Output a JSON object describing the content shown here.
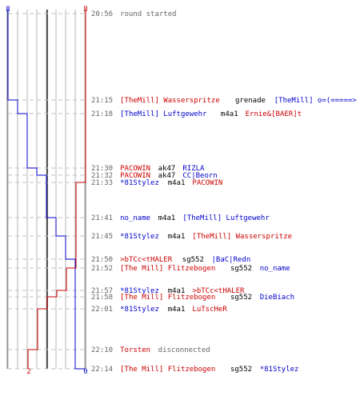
{
  "colors": {
    "blue": "#0000cc",
    "red": "#cc0000",
    "grey": "#666666",
    "black": "#000000",
    "grid": "#b4b4b4",
    "dash": "#c0c0c0",
    "axis": "#777777"
  },
  "chart_data": {
    "type": "line",
    "y_axis": "time",
    "series": [
      {
        "name": "",
        "color": "blue",
        "start_value": 8,
        "end_value": 0,
        "steps": [
          {
            "time": "21:15",
            "value": 7
          },
          {
            "time": "21:18",
            "value": 6
          },
          {
            "time": "21:30",
            "value": 5
          },
          {
            "time": "21:32",
            "value": 4
          },
          {
            "time": "21:41",
            "value": 3
          },
          {
            "time": "21:45",
            "value": 2
          },
          {
            "time": "21:50",
            "value": 1
          },
          {
            "time": "22:14",
            "value": 0
          }
        ]
      },
      {
        "name": "",
        "color": "red",
        "start_value": 8,
        "end_value": 2,
        "steps": [
          {
            "time": "21:33",
            "value": 7
          },
          {
            "time": "21:52",
            "value": 6
          },
          {
            "time": "21:57",
            "value": 5
          },
          {
            "time": "21:58",
            "value": 4
          },
          {
            "time": "22:01",
            "value": 3
          },
          {
            "time": "22:10",
            "value": 2
          }
        ]
      }
    ],
    "top_labels": [
      {
        "text": "8",
        "color": "blue",
        "value": 8
      },
      {
        "text": "8",
        "color": "red",
        "value": 8
      }
    ],
    "bottom_labels": [
      {
        "text": "0",
        "color": "blue",
        "value": 0
      },
      {
        "text": "2",
        "color": "red",
        "value": 2
      }
    ]
  },
  "events": [
    {
      "time": "20:56",
      "parts": [
        {
          "text": "round started",
          "color": "grey"
        }
      ]
    },
    {
      "time": "21:15",
      "parts": [
        {
          "text": "[TheMill] Wasserspritze",
          "color": "red"
        },
        {
          "text": " grenade ",
          "color": "black"
        },
        {
          "text": "[TheMill] o=(=====>",
          "color": "blue"
        }
      ]
    },
    {
      "time": "21:18",
      "parts": [
        {
          "text": "[TheMill] Luftgewehr",
          "color": "blue"
        },
        {
          "text": " m4a1 ",
          "color": "black"
        },
        {
          "text": "Ernie&[BAER]t",
          "color": "red"
        }
      ]
    },
    {
      "time": "21:30",
      "parts": [
        {
          "text": "PACOWIN",
          "color": "red"
        },
        {
          "text": " ak47 ",
          "color": "black"
        },
        {
          "text": "RIZLA",
          "color": "blue"
        }
      ]
    },
    {
      "time": "21:32",
      "parts": [
        {
          "text": "PACOWIN",
          "color": "red"
        },
        {
          "text": " ak47 ",
          "color": "black"
        },
        {
          "text": "CC|Beorn",
          "color": "blue"
        }
      ]
    },
    {
      "time": "21:33",
      "parts": [
        {
          "text": "*81Stylez",
          "color": "blue"
        },
        {
          "text": " m4a1 ",
          "color": "black"
        },
        {
          "text": "PACOWIN",
          "color": "red"
        }
      ]
    },
    {
      "time": "21:41",
      "parts": [
        {
          "text": "no_name",
          "color": "blue"
        },
        {
          "text": " m4a1 ",
          "color": "black"
        },
        {
          "text": "[TheMill] Luftgewehr",
          "color": "blue"
        }
      ]
    },
    {
      "time": "21:45",
      "parts": [
        {
          "text": "*81Stylez",
          "color": "blue"
        },
        {
          "text": " m4a1 ",
          "color": "black"
        },
        {
          "text": "[TheMill] Wasserspritze",
          "color": "red"
        }
      ]
    },
    {
      "time": "21:50",
      "parts": [
        {
          "text": ">bTCc<tHALER",
          "color": "red"
        },
        {
          "text": " sg552 ",
          "color": "black"
        },
        {
          "text": "|BaC|Redn",
          "color": "blue"
        }
      ]
    },
    {
      "time": "21:52",
      "parts": [
        {
          "text": "[The Mill] Flitzebogen",
          "color": "red"
        },
        {
          "text": " sg552 ",
          "color": "black"
        },
        {
          "text": "no_name",
          "color": "blue"
        }
      ]
    },
    {
      "time": "21:57",
      "parts": [
        {
          "text": "*81Stylez",
          "color": "blue"
        },
        {
          "text": " m4a1 ",
          "color": "black"
        },
        {
          "text": ">bTCc<tHALER",
          "color": "red"
        }
      ]
    },
    {
      "time": "21:58",
      "parts": [
        {
          "text": "[The Mill] Flitzebogen",
          "color": "red"
        },
        {
          "text": " sg552 ",
          "color": "black"
        },
        {
          "text": "DieBiach",
          "color": "blue"
        }
      ]
    },
    {
      "time": "22:01",
      "parts": [
        {
          "text": "*81Stylez",
          "color": "blue"
        },
        {
          "text": " m4a1 ",
          "color": "black"
        },
        {
          "text": "LuTscHeR",
          "color": "red"
        }
      ]
    },
    {
      "time": "22:10",
      "parts": [
        {
          "text": "Torsten",
          "color": "red"
        },
        {
          "text": " disconnected",
          "color": "grey"
        }
      ]
    },
    {
      "time": "22:14",
      "parts": [
        {
          "text": "[The Mill] Flitzebogen",
          "color": "red"
        },
        {
          "text": " sg552 ",
          "color": "black"
        },
        {
          "text": "*81Stylez",
          "color": "blue"
        }
      ]
    }
  ]
}
